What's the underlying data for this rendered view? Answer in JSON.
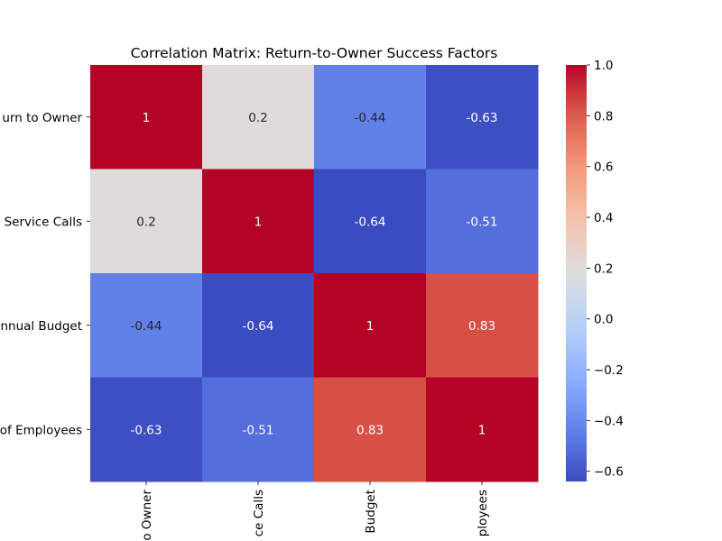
{
  "chart_data": {
    "type": "heatmap",
    "title": "Correlation Matrix: Return-to-Owner Success Factors",
    "row_labels": [
      "Return to Owner",
      "Service Calls",
      "Annual Budget",
      "Number of Employees"
    ],
    "col_labels": [
      "Return to Owner",
      "Service Calls",
      "Annual Budget",
      "Number of Employees"
    ],
    "row_labels_visible": [
      "urn to Owner",
      "Service Calls",
      "nnual Budget",
      "of Employees"
    ],
    "col_labels_visible": [
      "o Owner",
      "ce Calls",
      "Budget",
      "ployees"
    ],
    "values": [
      [
        1,
        0.2,
        -0.44,
        -0.63
      ],
      [
        0.2,
        1,
        -0.64,
        -0.51
      ],
      [
        -0.44,
        -0.64,
        1,
        0.83
      ],
      [
        -0.63,
        -0.51,
        0.83,
        1
      ]
    ],
    "cell_text": [
      [
        "1",
        "0.2",
        "-0.44",
        "-0.63"
      ],
      [
        "0.2",
        "1",
        "-0.64",
        "-0.51"
      ],
      [
        "-0.44",
        "-0.64",
        "1",
        "0.83"
      ],
      [
        "-0.63",
        "-0.51",
        "0.83",
        "1"
      ]
    ],
    "colormap": "coolwarm",
    "colorbar": {
      "vmin": -0.64,
      "vmax": 1.0,
      "ticks": [
        1.0,
        0.8,
        0.6,
        0.4,
        0.2,
        0.0,
        -0.2,
        -0.4,
        -0.6
      ],
      "tick_labels": [
        "1.0",
        "0.8",
        "0.6",
        "0.4",
        "0.2",
        "0.0",
        "−0.2",
        "−0.4",
        "−0.6"
      ]
    }
  }
}
